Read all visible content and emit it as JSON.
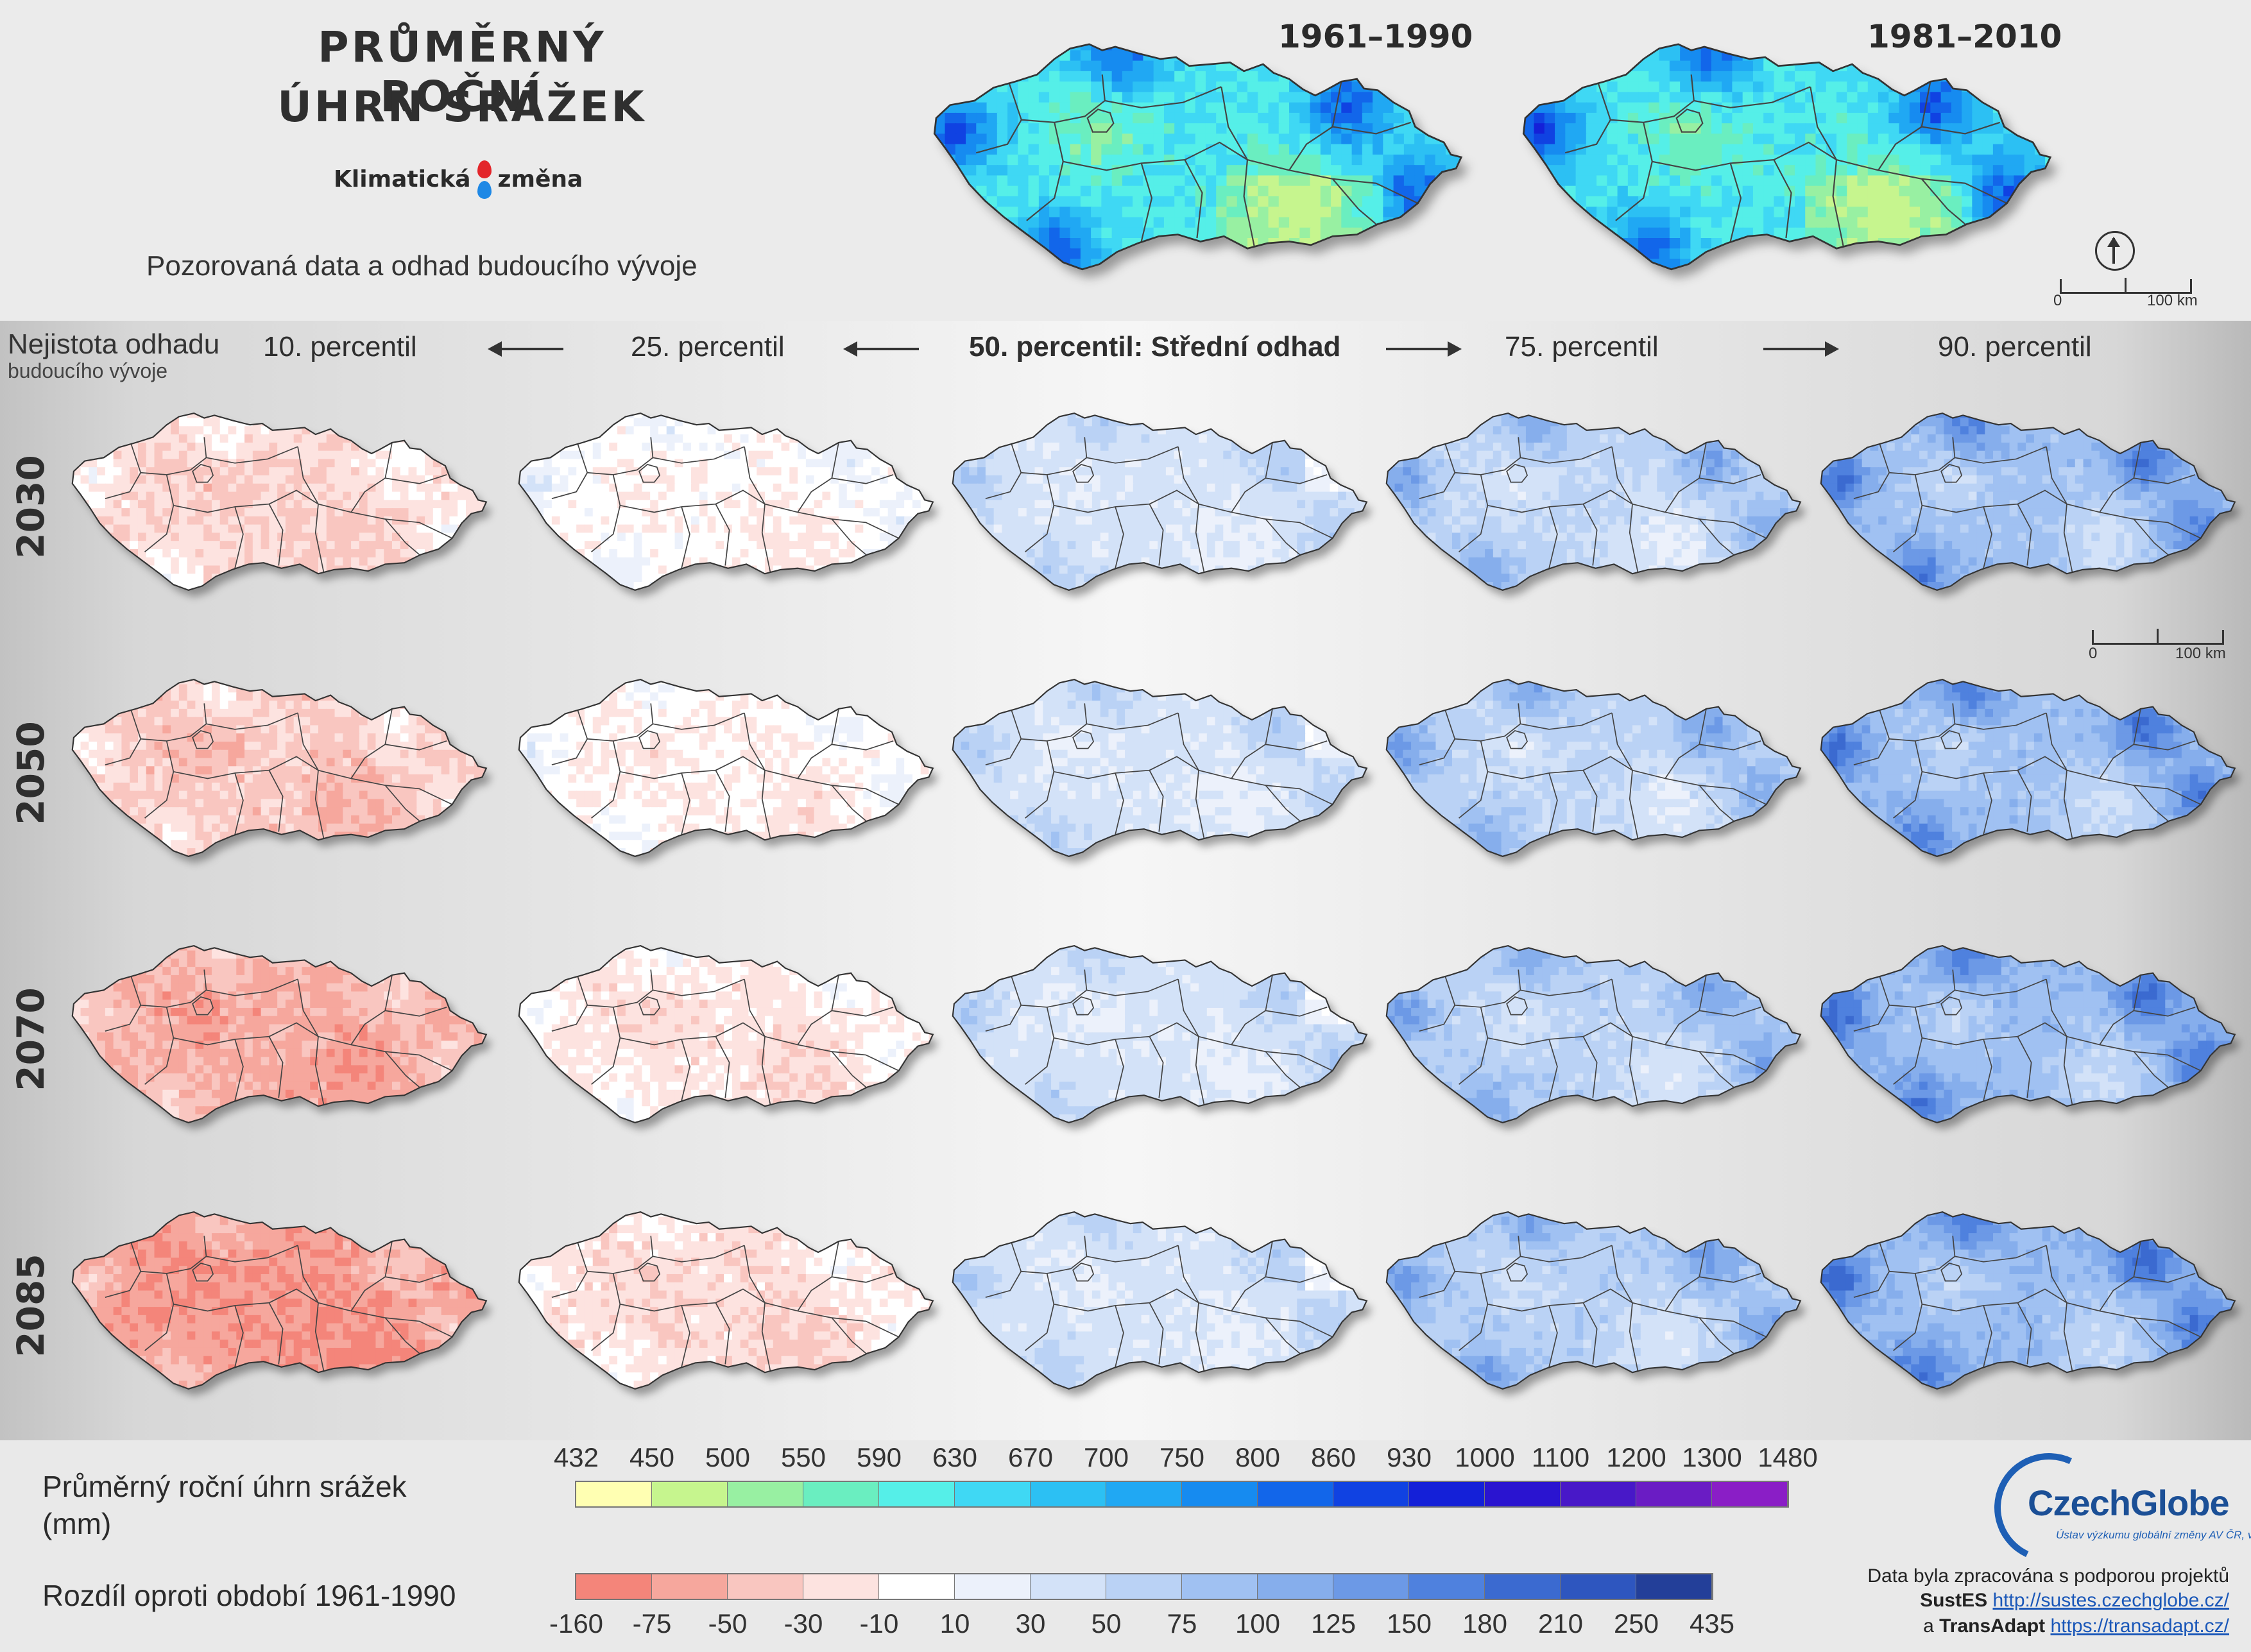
{
  "header": {
    "title_line1": "PRŮMĚRNÝ ROČNÍ",
    "title_line2": "ÚHRN SRÁŽEK",
    "brand_left": "Klimatická",
    "brand_right": "změna",
    "subtitle": "Pozorovaná data a odhad budoucího vývoje"
  },
  "observed_maps": [
    {
      "period": "1961–1990"
    },
    {
      "period": "1981–2010"
    }
  ],
  "scale": {
    "min_label": "0",
    "max_label": "100 km"
  },
  "uncertainty_label_1": "Nejistota odhadu",
  "uncertainty_label_2": "budoucího vývoje",
  "columns": [
    {
      "label": "10. percentil",
      "intensity": -2
    },
    {
      "label": "25. percentil",
      "intensity": -1
    },
    {
      "label": "50. percentil: Střední odhad",
      "intensity": 0
    },
    {
      "label": "75. percentil",
      "intensity": 1
    },
    {
      "label": "90. percentil",
      "intensity": 2
    }
  ],
  "rows": [
    {
      "year": "2030",
      "shift": 0
    },
    {
      "year": "2050",
      "shift": 0.3
    },
    {
      "year": "2070",
      "shift": 0.8
    },
    {
      "year": "2085",
      "shift": 1.1
    }
  ],
  "legend": {
    "abs_title_line1": "Průměrný roční úhrn srážek",
    "abs_title_line2": "(mm)",
    "abs_ticks": [
      "432",
      "450",
      "500",
      "550",
      "590",
      "630",
      "670",
      "700",
      "750",
      "800",
      "860",
      "930",
      "1000",
      "1100",
      "1200",
      "1300",
      "1480"
    ],
    "abs_colors": [
      "#ffffb2",
      "#c6f58e",
      "#98f0a2",
      "#6aeec0",
      "#55efe8",
      "#3fd8f4",
      "#2cc0f3",
      "#20a8f3",
      "#168bf0",
      "#1266ea",
      "#1042e2",
      "#1420d8",
      "#2a14d0",
      "#4818c8",
      "#6a1cc4",
      "#8a1ec6"
    ],
    "diff_title": "Rozdíl oproti období 1961-1990",
    "diff_ticks": [
      "-160",
      "-75",
      "-50",
      "-30",
      "-10",
      "10",
      "30",
      "50",
      "75",
      "100",
      "125",
      "150",
      "180",
      "210",
      "250",
      "435"
    ],
    "diff_colors": [
      "#f4857a",
      "#f6a79d",
      "#f9c6c0",
      "#fde3e0",
      "#ffffff",
      "#ecf1fb",
      "#d3e2f8",
      "#bad2f5",
      "#a0c1f2",
      "#86aeec",
      "#6c99e6",
      "#4f81de",
      "#3b6ad0",
      "#2e56bf",
      "#233f99"
    ]
  },
  "logo": {
    "name_a": "Czech",
    "name_b": "Globe",
    "sub": "Ústav výzkumu globální změny AV ČR, v. v. i."
  },
  "credits": {
    "line1": "Data byla zpracována s podporou projektů",
    "project1": "SustES",
    "link1": "http://sustes.czechglobe.cz/",
    "conj": "a",
    "project2": "TransAdapt",
    "link2": "https://transadapt.cz/"
  }
}
